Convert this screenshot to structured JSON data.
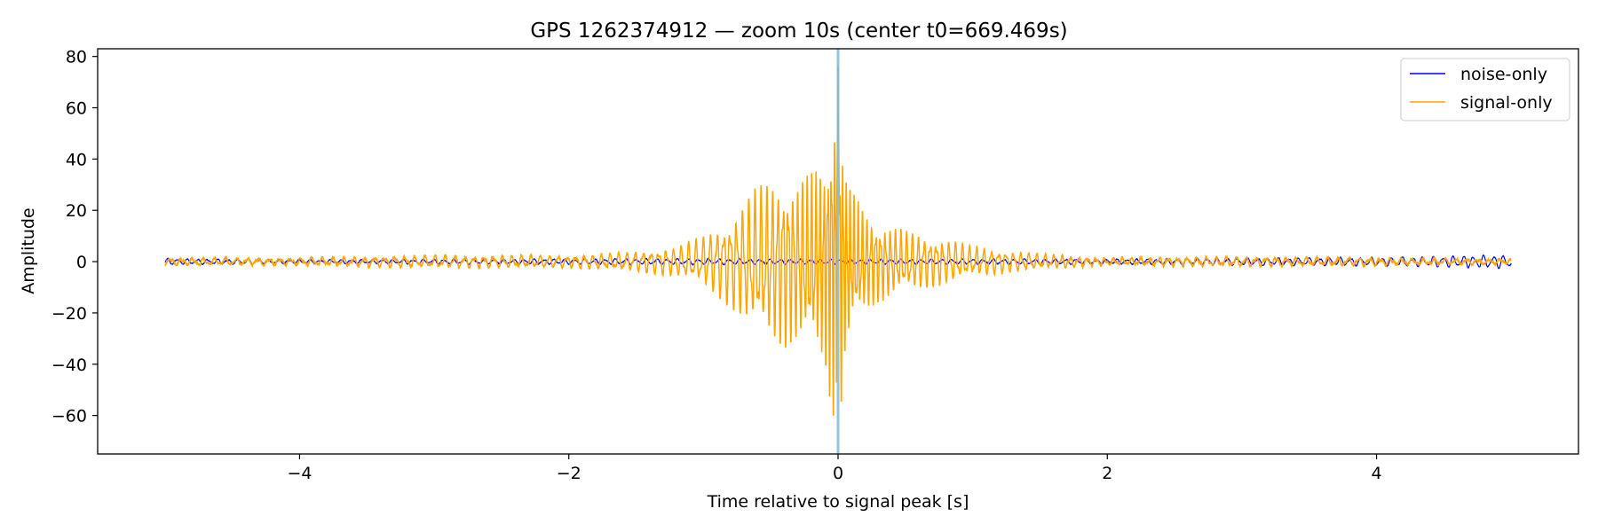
{
  "chart_data": {
    "type": "line",
    "title": "GPS 1262374912 — zoom 10s (center t0=669.469s)",
    "xlabel": "Time relative to signal peak [s]",
    "ylabel": "Amplitude",
    "xlim": [
      -5.5,
      5.5
    ],
    "ylim": [
      -75,
      83
    ],
    "xticks": [
      -4,
      -2,
      0,
      2,
      4
    ],
    "xtick_labels": [
      "−4",
      "−2",
      "0",
      "2",
      "4"
    ],
    "yticks": [
      -60,
      -40,
      -20,
      0,
      20,
      40,
      60,
      80
    ],
    "ytick_labels": [
      "−60",
      "−40",
      "−20",
      "0",
      "20",
      "40",
      "60",
      "80"
    ],
    "grid": false,
    "legend_position": "top-right",
    "peak_marker": {
      "x": 0,
      "color": "#7fb8d8"
    },
    "series": [
      {
        "name": "noise-only",
        "color": "#0000ff",
        "x": [
          -5.0,
          -4.5,
          -4.0,
          -3.5,
          -3.0,
          -2.5,
          -2.0,
          -1.5,
          -1.0,
          -0.5,
          0.0,
          0.5,
          1.0,
          1.5,
          2.0,
          2.5,
          3.0,
          3.5,
          4.0,
          4.5,
          5.0
        ],
        "envelope": [
          1.2,
          1.0,
          0.9,
          0.8,
          1.0,
          1.0,
          1.1,
          1.2,
          1.2,
          1.1,
          1.0,
          1.0,
          1.1,
          1.1,
          1.0,
          1.3,
          1.5,
          1.6,
          1.7,
          2.2,
          2.8
        ]
      },
      {
        "name": "signal-only",
        "color": "#ffa500",
        "x": [
          -5.0,
          -4.0,
          -3.0,
          -2.0,
          -1.5,
          -1.2,
          -1.0,
          -0.8,
          -0.6,
          -0.4,
          -0.3,
          -0.2,
          -0.1,
          0.0,
          0.05,
          0.1,
          0.2,
          0.3,
          0.5,
          0.8,
          1.0,
          1.5,
          2.0,
          3.0,
          4.0,
          5.0
        ],
        "envelope": [
          1.5,
          1.5,
          2.5,
          2.5,
          4.0,
          6.0,
          10.0,
          18.0,
          30.0,
          34.0,
          32.0,
          35.0,
          40.0,
          76.0,
          40.0,
          28.0,
          20.0,
          16.0,
          12.0,
          9.0,
          6.0,
          3.0,
          1.5,
          2.0,
          1.5,
          1.0
        ]
      }
    ]
  }
}
